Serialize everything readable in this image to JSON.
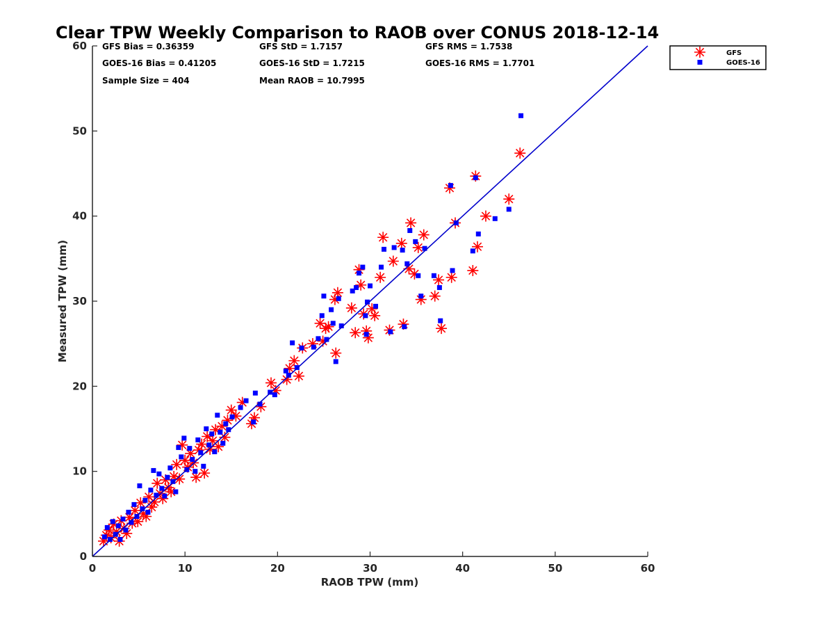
{
  "chart_data": {
    "type": "scatter",
    "title": "Clear TPW Weekly Comparison to RAOB over CONUS 2018-12-14",
    "xlabel": "RAOB TPW (mm)",
    "ylabel": "Measured TPW (mm)",
    "xlim": [
      0,
      60
    ],
    "ylim": [
      0,
      60
    ],
    "xticks": [
      "0",
      "10",
      "20",
      "30",
      "40",
      "50",
      "60"
    ],
    "yticks": [
      "0",
      "10",
      "20",
      "30",
      "40",
      "50",
      "60"
    ],
    "grid": false,
    "legend_position": "top-right outside",
    "stats": [
      "GFS Bias = 0.36359",
      "GFS StD = 1.7157",
      "GFS RMS = 1.7538",
      "GOES-16 Bias = 0.41205",
      "GOES-16 StD = 1.7215",
      "GOES-16 RMS = 1.7701",
      "Sample Size = 404",
      "Mean RAOB = 10.7995"
    ],
    "reference_line": {
      "x": [
        0,
        60
      ],
      "y": [
        0,
        60
      ],
      "color": "#0000cc"
    },
    "series": [
      {
        "name": "GFS",
        "marker": "asterisk",
        "color": "#ff0000",
        "points": [
          [
            1.2,
            1.8
          ],
          [
            1.5,
            2.5
          ],
          [
            1.8,
            3.1
          ],
          [
            2.0,
            2.2
          ],
          [
            2.3,
            3.8
          ],
          [
            2.6,
            2.9
          ],
          [
            2.9,
            1.8
          ],
          [
            3.1,
            4.2
          ],
          [
            3.4,
            3.3
          ],
          [
            3.7,
            2.7
          ],
          [
            4.0,
            4.6
          ],
          [
            4.3,
            3.9
          ],
          [
            4.6,
            5.4
          ],
          [
            4.9,
            4.1
          ],
          [
            5.2,
            6.3
          ],
          [
            5.5,
            5.0
          ],
          [
            5.8,
            4.7
          ],
          [
            6.1,
            7.0
          ],
          [
            6.4,
            5.8
          ],
          [
            6.7,
            6.4
          ],
          [
            7.0,
            8.6
          ],
          [
            7.3,
            7.4
          ],
          [
            7.6,
            6.8
          ],
          [
            7.9,
            9.0
          ],
          [
            8.2,
            8.1
          ],
          [
            8.5,
            7.6
          ],
          [
            8.8,
            9.4
          ],
          [
            9.1,
            10.8
          ],
          [
            9.4,
            9.1
          ],
          [
            9.7,
            13.1
          ],
          [
            10.0,
            11.3
          ],
          [
            10.3,
            10.5
          ],
          [
            10.6,
            12.1
          ],
          [
            10.9,
            11.0
          ],
          [
            11.2,
            9.3
          ],
          [
            11.5,
            12.5
          ],
          [
            11.8,
            13.2
          ],
          [
            12.1,
            9.8
          ],
          [
            12.4,
            14.1
          ],
          [
            12.7,
            12.6
          ],
          [
            13.0,
            13.6
          ],
          [
            13.3,
            14.9
          ],
          [
            13.6,
            12.9
          ],
          [
            14.0,
            15.3
          ],
          [
            14.3,
            14.0
          ],
          [
            14.6,
            16.0
          ],
          [
            15.0,
            17.2
          ],
          [
            15.5,
            16.5
          ],
          [
            16.2,
            18.1
          ],
          [
            17.2,
            15.6
          ],
          [
            17.5,
            16.3
          ],
          [
            18.2,
            17.6
          ],
          [
            19.3,
            20.4
          ],
          [
            19.8,
            19.5
          ],
          [
            21.0,
            20.8
          ],
          [
            21.3,
            22.1
          ],
          [
            21.8,
            23.0
          ],
          [
            22.3,
            21.2
          ],
          [
            22.7,
            24.5
          ],
          [
            23.8,
            25.0
          ],
          [
            24.6,
            27.4
          ],
          [
            24.9,
            25.3
          ],
          [
            25.2,
            26.8
          ],
          [
            25.5,
            27.0
          ],
          [
            26.2,
            30.2
          ],
          [
            26.5,
            31.0
          ],
          [
            26.3,
            23.9
          ],
          [
            28.0,
            29.2
          ],
          [
            28.4,
            26.3
          ],
          [
            28.8,
            33.7
          ],
          [
            29.0,
            31.9
          ],
          [
            29.3,
            28.5
          ],
          [
            29.6,
            26.5
          ],
          [
            29.8,
            25.7
          ],
          [
            30.2,
            29.1
          ],
          [
            30.5,
            28.3
          ],
          [
            31.1,
            32.8
          ],
          [
            31.4,
            37.5
          ],
          [
            32.1,
            26.6
          ],
          [
            32.5,
            34.7
          ],
          [
            33.4,
            36.8
          ],
          [
            33.6,
            27.3
          ],
          [
            34.2,
            33.8
          ],
          [
            34.4,
            39.2
          ],
          [
            34.8,
            33.2
          ],
          [
            35.2,
            36.3
          ],
          [
            35.5,
            30.2
          ],
          [
            35.8,
            37.8
          ],
          [
            37.0,
            30.6
          ],
          [
            37.4,
            32.5
          ],
          [
            37.7,
            26.8
          ],
          [
            38.6,
            43.3
          ],
          [
            38.8,
            32.8
          ],
          [
            39.2,
            39.2
          ],
          [
            41.1,
            33.6
          ],
          [
            41.4,
            44.7
          ],
          [
            41.6,
            36.4
          ],
          [
            42.5,
            40.0
          ],
          [
            45.0,
            42.0
          ],
          [
            46.2,
            47.4
          ]
        ]
      },
      {
        "name": "GOES-16",
        "marker": "square",
        "color": "#0000ff",
        "points": [
          [
            1.3,
            2.3
          ],
          [
            1.6,
            3.4
          ],
          [
            1.9,
            2.0
          ],
          [
            2.2,
            4.1
          ],
          [
            2.5,
            2.6
          ],
          [
            2.8,
            3.6
          ],
          [
            3.0,
            2.0
          ],
          [
            3.3,
            4.4
          ],
          [
            3.6,
            3.1
          ],
          [
            3.9,
            5.2
          ],
          [
            4.2,
            4.0
          ],
          [
            4.5,
            6.1
          ],
          [
            4.8,
            4.7
          ],
          [
            5.1,
            8.3
          ],
          [
            5.4,
            5.6
          ],
          [
            5.7,
            6.6
          ],
          [
            6.0,
            5.2
          ],
          [
            6.3,
            7.8
          ],
          [
            6.6,
            10.1
          ],
          [
            6.9,
            7.2
          ],
          [
            7.2,
            9.7
          ],
          [
            7.5,
            8.0
          ],
          [
            7.8,
            7.1
          ],
          [
            8.1,
            9.3
          ],
          [
            8.4,
            10.4
          ],
          [
            8.7,
            8.8
          ],
          [
            9.0,
            7.6
          ],
          [
            9.3,
            12.8
          ],
          [
            9.6,
            11.7
          ],
          [
            9.9,
            13.9
          ],
          [
            10.2,
            10.2
          ],
          [
            10.5,
            12.7
          ],
          [
            10.8,
            11.4
          ],
          [
            11.1,
            10.0
          ],
          [
            11.4,
            13.7
          ],
          [
            11.7,
            12.2
          ],
          [
            12.0,
            10.6
          ],
          [
            12.3,
            15.0
          ],
          [
            12.6,
            13.1
          ],
          [
            12.9,
            14.4
          ],
          [
            13.2,
            12.3
          ],
          [
            13.5,
            16.6
          ],
          [
            13.8,
            14.6
          ],
          [
            14.1,
            13.3
          ],
          [
            14.4,
            15.6
          ],
          [
            14.7,
            14.9
          ],
          [
            15.1,
            16.4
          ],
          [
            16.0,
            17.5
          ],
          [
            16.6,
            18.3
          ],
          [
            17.4,
            15.8
          ],
          [
            17.6,
            19.2
          ],
          [
            18.1,
            17.9
          ],
          [
            19.2,
            19.3
          ],
          [
            19.7,
            19.0
          ],
          [
            20.9,
            21.8
          ],
          [
            21.2,
            21.3
          ],
          [
            21.6,
            25.1
          ],
          [
            22.1,
            22.2
          ],
          [
            22.6,
            24.5
          ],
          [
            23.9,
            24.6
          ],
          [
            24.4,
            25.6
          ],
          [
            24.8,
            28.3
          ],
          [
            25.0,
            30.6
          ],
          [
            25.3,
            25.5
          ],
          [
            25.8,
            29.0
          ],
          [
            26.0,
            27.4
          ],
          [
            26.3,
            22.9
          ],
          [
            26.6,
            30.3
          ],
          [
            26.9,
            27.1
          ],
          [
            28.1,
            31.2
          ],
          [
            28.5,
            31.6
          ],
          [
            28.8,
            33.3
          ],
          [
            29.2,
            34.0
          ],
          [
            29.5,
            28.3
          ],
          [
            29.7,
            29.9
          ],
          [
            29.6,
            26.1
          ],
          [
            30.0,
            31.8
          ],
          [
            30.6,
            29.4
          ],
          [
            31.2,
            34.0
          ],
          [
            31.5,
            36.1
          ],
          [
            32.2,
            26.4
          ],
          [
            32.6,
            36.3
          ],
          [
            33.5,
            36.0
          ],
          [
            33.7,
            27.0
          ],
          [
            34.0,
            34.4
          ],
          [
            34.3,
            38.3
          ],
          [
            34.9,
            37.0
          ],
          [
            35.2,
            33.0
          ],
          [
            35.5,
            30.6
          ],
          [
            35.9,
            36.2
          ],
          [
            36.9,
            33.0
          ],
          [
            37.5,
            31.6
          ],
          [
            37.6,
            27.7
          ],
          [
            38.7,
            43.6
          ],
          [
            38.9,
            33.6
          ],
          [
            39.3,
            39.2
          ],
          [
            41.1,
            35.9
          ],
          [
            41.4,
            44.5
          ],
          [
            41.7,
            37.9
          ],
          [
            43.5,
            39.7
          ],
          [
            45.0,
            40.8
          ],
          [
            46.3,
            51.8
          ]
        ]
      }
    ]
  }
}
